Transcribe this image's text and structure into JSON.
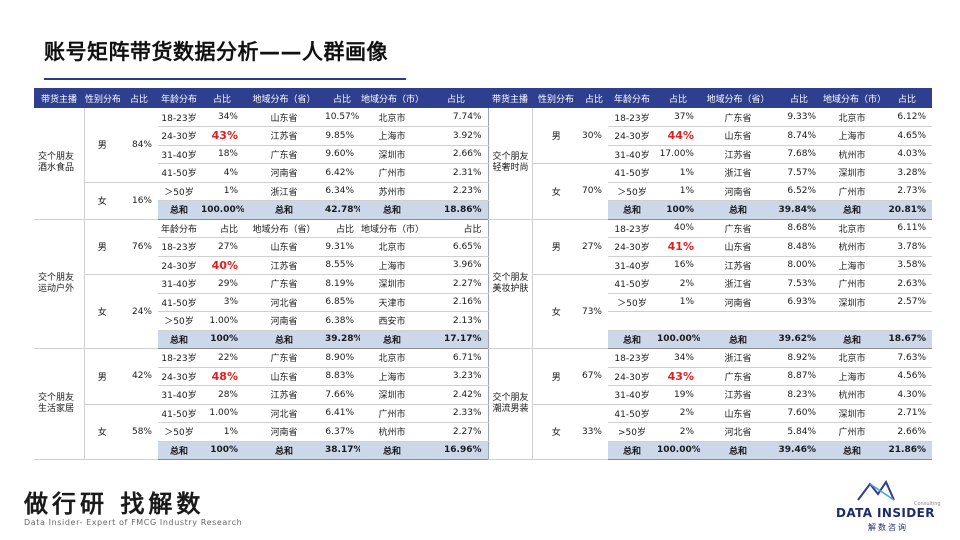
{
  "title": "账号矩阵带货数据分析——人群画像",
  "header_left": [
    "带货主播",
    "性别分布",
    "占比",
    "年龄分布",
    "占比",
    "地域分布（省）",
    "占比",
    "地域分布（市）",
    "占比"
  ],
  "header_right": [
    "带货主播",
    "性别分布",
    "占比",
    "年龄分布",
    "占比",
    "地域分布（省）",
    "占比",
    "地域分布（市）",
    "占比"
  ],
  "blocks": [
    {
      "left": {
        "account": "交个朋友酒水食品",
        "genders": [
          {
            "label": "男",
            "pct": "84%",
            "start": 0,
            "span": 4
          },
          {
            "label": "女",
            "pct": "16%",
            "start": 4,
            "span": 2
          }
        ],
        "rows": [
          [
            "18-23岁",
            "34%",
            "山东省",
            "10.57%",
            "北京市",
            "7.74%"
          ],
          [
            "24-30岁",
            "43%",
            "江苏省",
            "9.85%",
            "上海市",
            "3.92%"
          ],
          [
            "31-40岁",
            "18%",
            "广东省",
            "9.60%",
            "深圳市",
            "2.66%"
          ],
          [
            "41-50岁",
            "4%",
            "河南省",
            "6.42%",
            "广州市",
            "2.31%"
          ],
          [
            "＞50岁",
            "1%",
            "浙江省",
            "6.34%",
            "苏州市",
            "2.23%"
          ],
          [
            "总和",
            "100.00%",
            "总和",
            "42.78%",
            "总和",
            "18.86%"
          ]
        ]
      },
      "right": {
        "account": "交个朋友轻奢时尚",
        "genders": [
          {
            "label": "男",
            "pct": "30%",
            "start": 0,
            "span": 3
          },
          {
            "label": "女",
            "pct": "70%",
            "start": 3,
            "span": 3
          }
        ],
        "rows": [
          [
            "18-23岁",
            "37%",
            "广东省",
            "9.33%",
            "北京市",
            "6.12%"
          ],
          [
            "24-30岁",
            "44%",
            "山东省",
            "8.74%",
            "上海市",
            "4.65%"
          ],
          [
            "31-40岁",
            "17.00%",
            "江苏省",
            "7.68%",
            "杭州市",
            "4.03%"
          ],
          [
            "41-50岁",
            "1%",
            "浙江省",
            "7.57%",
            "深圳市",
            "3.28%"
          ],
          [
            "＞50岁",
            "1%",
            "河南省",
            "6.52%",
            "广州市",
            "2.73%"
          ],
          [
            "总和",
            "100%",
            "总和",
            "39.84%",
            "总和",
            "20.81%"
          ]
        ]
      }
    },
    {
      "left": {
        "account": "交个朋友运动户外",
        "genders": [
          {
            "label": "男",
            "pct": "76%",
            "start": 0,
            "span": 3
          },
          {
            "label": "女",
            "pct": "24%",
            "start": 3,
            "span": 4
          }
        ],
        "rows": [
          [
            "年龄分布",
            "占比",
            "地域分布（省）",
            "占比",
            "地域分布（市）",
            "占比"
          ],
          [
            "18-23岁",
            "27%",
            "山东省",
            "9.31%",
            "北京市",
            "6.65%"
          ],
          [
            "24-30岁",
            "40%",
            "江苏省",
            "8.55%",
            "上海市",
            "3.96%"
          ],
          [
            "31-40岁",
            "29%",
            "广东省",
            "8.19%",
            "深圳市",
            "2.27%"
          ],
          [
            "41-50岁",
            "3%",
            "河北省",
            "6.85%",
            "天津市",
            "2.16%"
          ],
          [
            "＞50岁",
            "1.00%",
            "河南省",
            "6.38%",
            "西安市",
            "2.13%"
          ],
          [
            "总和",
            "100%",
            "总和",
            "39.28%",
            "总和",
            "17.17%"
          ]
        ]
      },
      "right": {
        "account": "交个朋友美妆护肤",
        "genders": [
          {
            "label": "男",
            "pct": "27%",
            "start": 0,
            "span": 3
          },
          {
            "label": "女",
            "pct": "73%",
            "start": 3,
            "span": 4
          }
        ],
        "rows": [
          [
            "18-23岁",
            "40%",
            "广东省",
            "8.68%",
            "北京市",
            "6.11%"
          ],
          [
            "24-30岁",
            "41%",
            "山东省",
            "8.48%",
            "杭州市",
            "3.78%"
          ],
          [
            "31-40岁",
            "16%",
            "江苏省",
            "8.00%",
            "上海市",
            "3.58%"
          ],
          [
            "41-50岁",
            "2%",
            "浙江省",
            "7.53%",
            "广州市",
            "2.63%"
          ],
          [
            "＞50岁",
            "1%",
            "河南省",
            "6.93%",
            "深圳市",
            "2.57%"
          ],
          [
            "",
            "",
            "",
            "",
            "",
            ""
          ],
          [
            "总和",
            "100.00%",
            "总和",
            "39.62%",
            "总和",
            "18.67%"
          ]
        ]
      }
    },
    {
      "left": {
        "account": "交个朋友生活家居",
        "genders": [
          {
            "label": "男",
            "pct": "42%",
            "start": 0,
            "span": 3
          },
          {
            "label": "女",
            "pct": "58%",
            "start": 3,
            "span": 3
          }
        ],
        "rows": [
          [
            "18-23岁",
            "22%",
            "广东省",
            "8.90%",
            "北京市",
            "6.71%"
          ],
          [
            "24-30岁",
            "48%",
            "山东省",
            "8.83%",
            "上海市",
            "3.23%"
          ],
          [
            "31-40岁",
            "28%",
            "江苏省",
            "7.66%",
            "深圳市",
            "2.42%"
          ],
          [
            "41-50岁",
            "1.00%",
            "河北省",
            "6.41%",
            "广州市",
            "2.33%"
          ],
          [
            "＞50岁",
            "1%",
            "河南省",
            "6.37%",
            "杭州市",
            "2.27%"
          ],
          [
            "总和",
            "100%",
            "总和",
            "38.17%",
            "总和",
            "16.96%"
          ]
        ]
      },
      "right": {
        "account": "交个朋友潮流男装",
        "genders": [
          {
            "label": "男",
            "pct": "67%",
            "start": 0,
            "span": 3
          },
          {
            "label": "女",
            "pct": "33%",
            "start": 3,
            "span": 3
          }
        ],
        "rows": [
          [
            "18-23岁",
            "34%",
            "浙江省",
            "8.92%",
            "北京市",
            "7.63%"
          ],
          [
            "24-30岁",
            "43%",
            "广东省",
            "8.87%",
            "上海市",
            "4.56%"
          ],
          [
            "31-40岁",
            "19%",
            "江苏省",
            "8.23%",
            "杭州市",
            "4.30%"
          ],
          [
            "41-50岁",
            "2%",
            "山东省",
            "7.60%",
            "深圳市",
            "2.71%"
          ],
          [
            ">50岁",
            "2%",
            "河北省",
            "5.84%",
            "广州市",
            "2.66%"
          ],
          [
            "总和",
            "100.00%",
            "总和",
            "39.46%",
            "总和",
            "21.86%"
          ]
        ]
      }
    }
  ],
  "highlight_rows": {
    "block0": 1,
    "block1_left": 2,
    "block1_right": 1,
    "block2": 1
  },
  "footer": {
    "brand_cn": "做行研 找解数",
    "brand_en": "Data Insider- Expert of FMCG Industry Research",
    "logo_sub": "Consulting",
    "logo_name": "DATA INSIDER",
    "logo_cn": "解数咨询"
  },
  "colors": {
    "header_bg": "#2e3f8f",
    "total_bg": "#cdd7ea",
    "highlight": "#e02020",
    "title_rule": "#2b3a8a"
  }
}
